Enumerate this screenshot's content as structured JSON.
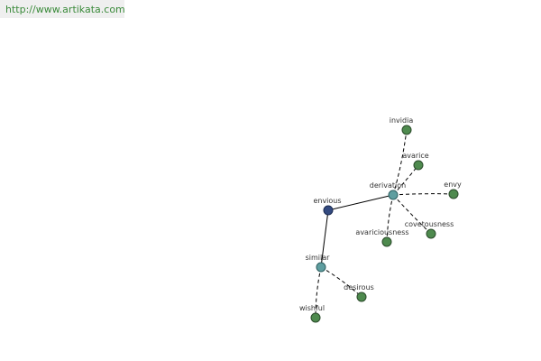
{
  "header": {
    "url": "http://www.artikata.com"
  },
  "nodes": [
    {
      "label": "envious"
    },
    {
      "label": "derivation"
    },
    {
      "label": "similar"
    },
    {
      "label": "invidia"
    },
    {
      "label": "avarice"
    },
    {
      "label": "envy"
    },
    {
      "label": "covetousness"
    },
    {
      "label": "avariciousness"
    },
    {
      "label": "desirous"
    },
    {
      "label": "wishful"
    }
  ]
}
